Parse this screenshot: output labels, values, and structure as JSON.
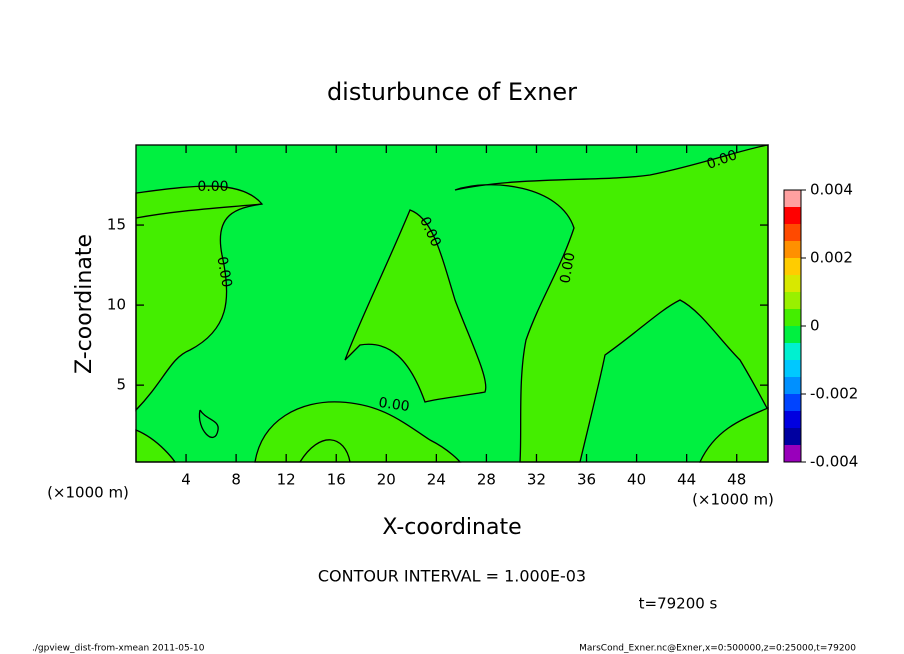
{
  "chart_data": {
    "type": "contour",
    "title": "disturbunce of Exner",
    "xlabel": "X-coordinate",
    "ylabel": "Z-coordinate",
    "x_unit_label": "(×1000 m)",
    "y_unit_label": "(×1000 m)",
    "xlim": [
      0,
      50.5
    ],
    "ylim": [
      0.2,
      20
    ],
    "xticks": [
      4,
      8,
      12,
      16,
      20,
      24,
      28,
      32,
      36,
      40,
      44,
      48
    ],
    "yticks": [
      5,
      10,
      15
    ],
    "contour_labels": [
      "0.00",
      "0.00",
      "0.00",
      "0.00",
      "0.00",
      "0.00"
    ],
    "colorbar": {
      "levels": [
        -0.004,
        -0.0035,
        -0.003,
        -0.0025,
        -0.002,
        -0.0015,
        -0.001,
        -0.0005,
        0,
        0.0005,
        0.001,
        0.0015,
        0.002,
        0.0025,
        0.003,
        0.0035,
        0.004
      ],
      "colors": [
        "#9900bb",
        "#0000a0",
        "#0000e0",
        "#0044ff",
        "#0090ff",
        "#00c8ff",
        "#00f0d0",
        "#00f040",
        "#44ee00",
        "#99f000",
        "#d8e800",
        "#ffcc00",
        "#ff9000",
        "#ff4a00",
        "#ff0000",
        "#ffa0a0"
      ],
      "ticks": [
        0.004,
        0.002,
        0,
        -0.002,
        -0.004
      ]
    },
    "annotation": "CONTOUR INTERVAL = 1.000E-03",
    "time_label": "t=79200 s",
    "footer_left": "./gpview_dist-from-xmean  2011-05-10",
    "footer_right": "MarsCond_Exner.nc@Exner,x=0:500000,z=0:25000,t=79200"
  }
}
